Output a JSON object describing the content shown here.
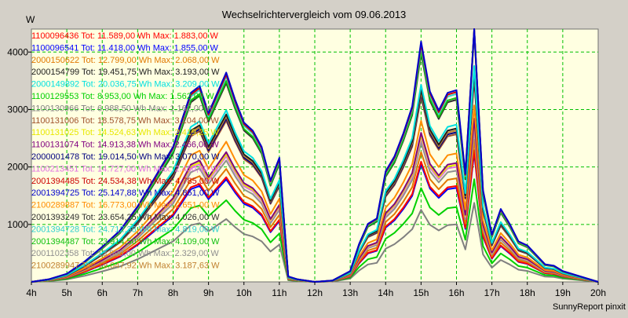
{
  "chart_data": {
    "type": "line",
    "title": "Wechselrichtervergleich vom 09.06.2013",
    "ylabel": "W",
    "xlabel": "",
    "footer": "SunnyReport pinxit",
    "x_ticks": [
      "4h",
      "5h",
      "6h",
      "7h",
      "8h",
      "9h",
      "10h",
      "11h",
      "12h",
      "13h",
      "14h",
      "15h",
      "16h",
      "17h",
      "18h",
      "19h",
      "20h"
    ],
    "y_ticks": [
      1000,
      2000,
      3000,
      4000
    ],
    "xlim": [
      4,
      20
    ],
    "ylim": [
      0,
      4400
    ],
    "grid": true,
    "legend_position": "top-left",
    "x_hours": [
      4,
      4.5,
      5,
      5.5,
      6,
      6.5,
      7,
      7.5,
      8,
      8.25,
      8.5,
      8.75,
      9,
      9.5,
      9.75,
      10,
      10.25,
      10.5,
      10.75,
      11,
      11.25,
      11.5,
      12,
      12.5,
      13,
      13.25,
      13.5,
      13.75,
      14,
      14.25,
      14.5,
      14.75,
      15,
      15.25,
      15.5,
      15.75,
      16,
      16.25,
      16.5,
      16.75,
      17,
      17.25,
      17.5,
      17.75,
      18,
      18.5,
      18.75,
      19,
      19.5,
      20
    ],
    "series": [
      {
        "legend": "1100096436 Tot: 11.589,00 Wh Max: 1.883,00 W",
        "color": "#ff0000",
        "scale": 0.5
      },
      {
        "legend": "1100096541 Tot: 11.418,00 Wh Max: 1.855,00 W",
        "color": "#0000ff",
        "scale": 0.49
      },
      {
        "legend": "2000150622 Tot: 12.799,00 Wh Max: 2.068,00 W",
        "color": "#e07800",
        "scale": 0.54
      },
      {
        "legend": "2000154799 Tot: 19.451,75 Wh Max: 3.193,00 W",
        "color": "#202020",
        "scale": 0.8
      },
      {
        "legend": "2000149892 Tot: 20.036,75 Wh Max: 3.209,00 W",
        "color": "#00e0e0",
        "scale": 0.82
      },
      {
        "legend": "1100129553 Tot: 8.953,00 Wh Max: 1.562,00 W",
        "color": "#00d000",
        "scale": 0.39
      },
      {
        "legend": "1100130966 Tot: 6.988,50 Wh Max: 1.162,00 W",
        "color": "#808080",
        "scale": 0.3
      },
      {
        "legend": "1100131006 Tot: 18.578,75 Wh Max: 3.104,00 W",
        "color": "#a0522d",
        "scale": 0.77
      },
      {
        "legend": "1100131025 Tot: 14.524,63 Wh Max: 2.419,25 W",
        "color": "#e8e800",
        "scale": 0.61
      },
      {
        "legend": "1100131074 Tot: 14.913,38 Wh Max: 2.466,00 W",
        "color": "#800080",
        "scale": 0.62
      },
      {
        "legend": "2000001478 Tot: 19.014,50 Wh Max: 3.070,00 W",
        "color": "#000080",
        "scale": 0.78
      },
      {
        "legend": "1100213451 Tot: 14.727,00 Wh Max: 2.450,00 W",
        "color": "#e070e0",
        "scale": 0.6
      },
      {
        "legend": "2001394485 Tot: 24.534,38 Wh Max: 4.785,00 W",
        "color": "#cc0000",
        "scale": 0.99
      },
      {
        "legend": "2001394725 Tot: 25.147,88 Wh Max: 4.851,00 W",
        "color": "#0000cc",
        "scale": 1.0
      },
      {
        "legend": "2100289887 Tot: 16.773,00 Wh Max: 2.651,00 W",
        "color": "#ff8c00",
        "scale": 0.67
      },
      {
        "legend": "2001393249 Tot: 23.654,25 Wh Max: 4.026,00 W",
        "color": "#303030",
        "scale": 0.95
      },
      {
        "legend": "2001394728 Tot: 24.712,38 Wh Max: 4.819,00 W",
        "color": "#30d0d0",
        "scale": 0.98
      },
      {
        "legend": "2001394487 Tot: 23.914,50 Wh Max: 4.109,00 W",
        "color": "#10c010",
        "scale": 0.96
      },
      {
        "legend": "2001102358 Tot: 13.990,00 Wh Max: 2.329,00 W",
        "color": "#909090",
        "scale": 0.58
      },
      {
        "legend": "2100289947 Tot: 19.047,92 Wh Max: 3.187,63 W",
        "color": "#c08030",
        "scale": 0.79
      }
    ],
    "base_profile": [
      0,
      20,
      60,
      150,
      260,
      380,
      560,
      780,
      1000,
      1200,
      1400,
      1450,
      1250,
      1550,
      1350,
      1180,
      1120,
      1000,
      750,
      920,
      40,
      20,
      0,
      10,
      80,
      280,
      430,
      470,
      820,
      930,
      1100,
      1300,
      1780,
      1410,
      1270,
      1400,
      1420,
      800,
      1950,
      680,
      350,
      540,
      430,
      300,
      270,
      130,
      120,
      80,
      40,
      0
    ]
  }
}
